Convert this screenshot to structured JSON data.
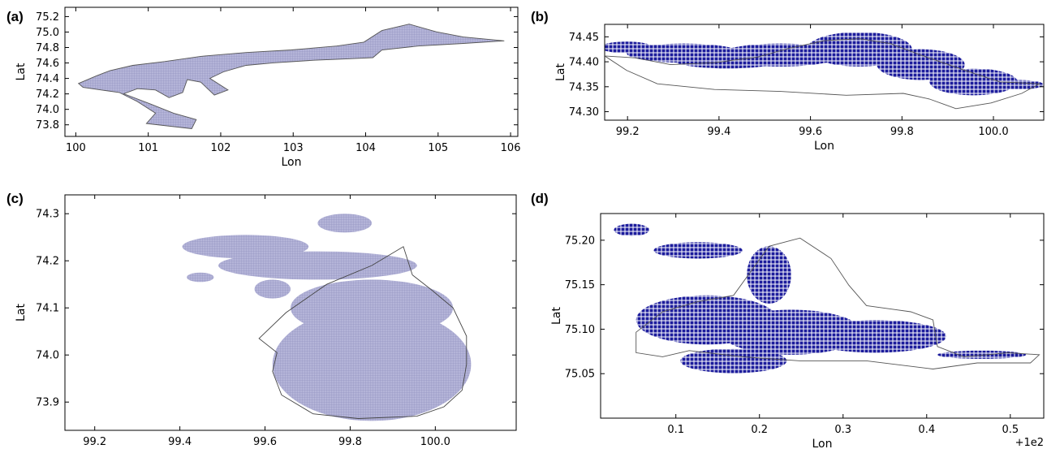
{
  "chart_data": [
    {
      "type": "map",
      "panel_label": "(a)",
      "xlabel": "Lon",
      "ylabel": "Lat",
      "xlim": [
        99.85,
        106.1
      ],
      "ylim": [
        73.65,
        75.32
      ],
      "xticks": [
        "100",
        "101",
        "102",
        "103",
        "104",
        "105",
        "106"
      ],
      "yticks": [
        "73.8",
        "74.0",
        "74.2",
        "74.4",
        "74.6",
        "74.8",
        "75.0",
        "75.2"
      ],
      "fill_color": "#b4b4d8",
      "outline_color": "#555555"
    },
    {
      "type": "map",
      "panel_label": "(b)",
      "xlabel": "Lon",
      "ylabel": "Lat",
      "xlim": [
        99.15,
        100.11
      ],
      "ylim": [
        74.283,
        74.475
      ],
      "xticks": [
        "99.2",
        "99.4",
        "99.6",
        "99.8",
        "100.0"
      ],
      "yticks": [
        "74.30",
        "74.35",
        "74.40",
        "74.45"
      ],
      "fill_color": "#1c1c9c",
      "outline_color": "#555555"
    },
    {
      "type": "map",
      "panel_label": "(c)",
      "xlabel": "Lon",
      "ylabel": "Lat",
      "xlim": [
        99.13,
        100.19
      ],
      "ylim": [
        73.84,
        74.34
      ],
      "xticks": [
        "99.2",
        "99.4",
        "99.6",
        "99.8",
        "100.0"
      ],
      "yticks": [
        "73.9",
        "74.0",
        "74.1",
        "74.2",
        "74.3"
      ],
      "fill_color": "#b4b4d8",
      "outline_color": "#444444"
    },
    {
      "type": "map",
      "panel_label": "(d)",
      "xlabel": "Lon",
      "ylabel": "Lat",
      "xlim": [
        100.01,
        100.54
      ],
      "ylim": [
        75.0,
        75.23
      ],
      "xticks": [
        "0.1",
        "0.2",
        "0.3",
        "0.4",
        "0.5"
      ],
      "yticks": [
        "75.05",
        "75.10",
        "75.15",
        "75.20"
      ],
      "offset_text": "+1e2",
      "fill_color": "#1c1c9c",
      "outline_color": "#555555"
    }
  ]
}
